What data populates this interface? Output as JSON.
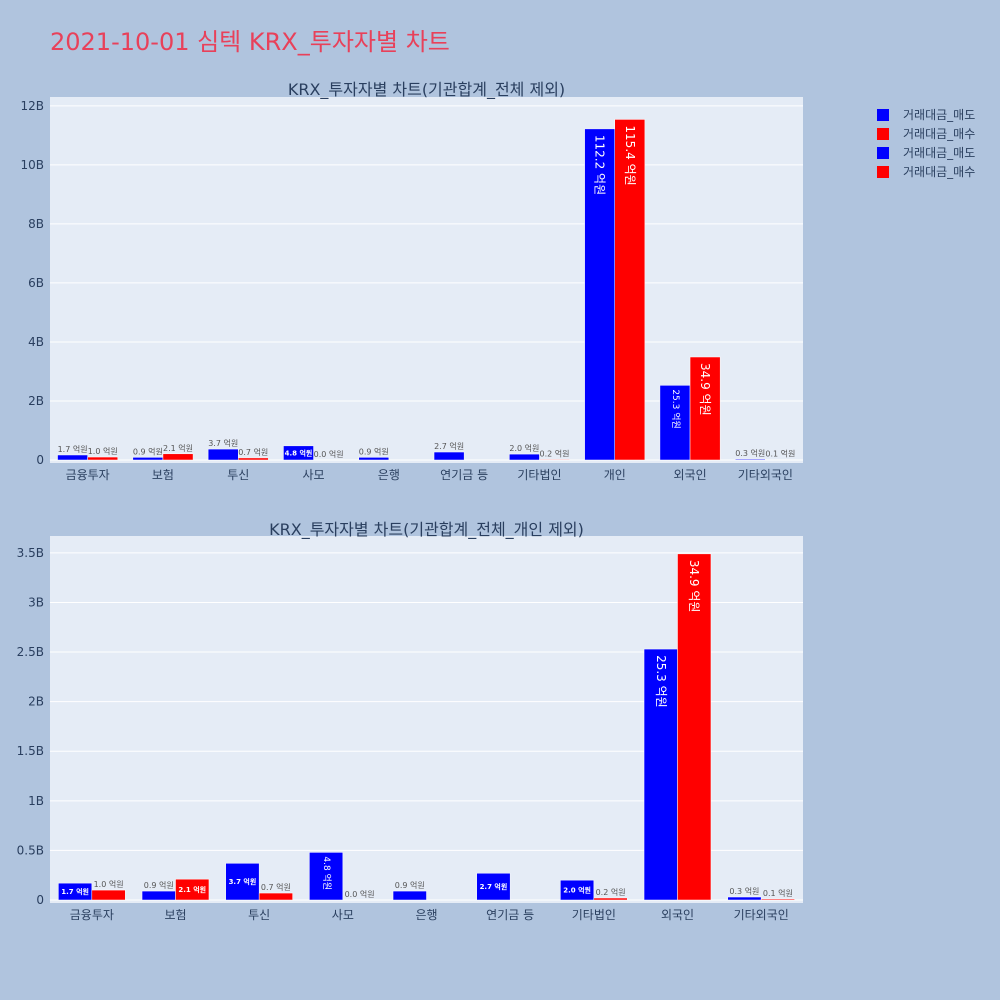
{
  "page": {
    "title": "2021-10-01 심텍 KRX_투자자별 차트"
  },
  "colors": {
    "sell": "#0000ff",
    "buy": "#ff0000",
    "plot_bg": "#e5ecf6",
    "page_bg": "#b0c4de",
    "title": "#e8415a"
  },
  "legend": {
    "placement": "top-right",
    "items": [
      {
        "name": "거래대금_매도",
        "color": "#0000ff"
      },
      {
        "name": "거래대금_매수",
        "color": "#ff0000"
      },
      {
        "name": "거래대금_매도",
        "color": "#0000ff"
      },
      {
        "name": "거래대금_매수",
        "color": "#ff0000"
      }
    ]
  },
  "chart_data": [
    {
      "type": "bar",
      "title": "KRX_투자자별 차트(기관합계_전체 제외)",
      "categories": [
        "금융투자",
        "보험",
        "투신",
        "사모",
        "은행",
        "연기금 등",
        "기타법인",
        "개인",
        "외국인",
        "기타외국인"
      ],
      "series": [
        {
          "name": "거래대금_매도",
          "color": "#0000ff",
          "values": [
            0.17,
            0.09,
            0.37,
            0.48,
            0.09,
            0.27,
            0.2,
            11.22,
            2.53,
            0.03
          ],
          "labels": [
            "1.7 억원",
            "0.9 억원",
            "3.7 억원",
            "4.8 억원",
            "0.9 억원",
            "2.7 억원",
            "2.0 억원",
            "112.2 억원",
            "25.3 억원",
            "0.3 억원"
          ]
        },
        {
          "name": "거래대금_매수",
          "color": "#ff0000",
          "values": [
            0.1,
            0.21,
            0.07,
            0.0,
            0.0,
            0.0,
            0.02,
            11.54,
            3.49,
            0.01
          ],
          "labels": [
            "1.0 억원",
            "2.1 억원",
            "0.7 억원",
            "0.0 억원",
            "",
            "",
            "0.2 억원",
            "115.4 억원",
            "34.9 억원",
            "0.1 억원"
          ]
        }
      ],
      "ylim": [
        0,
        12.3
      ],
      "yticks": [
        0,
        2,
        4,
        6,
        8,
        10,
        12
      ],
      "ytick_labels": [
        "0",
        "2B",
        "4B",
        "6B",
        "8B",
        "10B",
        "12B"
      ],
      "grid": true
    },
    {
      "type": "bar",
      "title": "KRX_투자자별 차트(기관합계_전체_개인 제외)",
      "categories": [
        "금융투자",
        "보험",
        "투신",
        "사모",
        "은행",
        "연기금 등",
        "기타법인",
        "외국인",
        "기타외국인"
      ],
      "series": [
        {
          "name": "거래대금_매도",
          "color": "#0000ff",
          "values": [
            0.17,
            0.09,
            0.37,
            0.48,
            0.09,
            0.27,
            0.2,
            2.53,
            0.03
          ],
          "labels": [
            "1.7 억원",
            "0.9 억원",
            "3.7 억원",
            "4.8 억원",
            "0.9 억원",
            "2.7 억원",
            "2.0 억원",
            "25.3 억원",
            "0.3 억원"
          ]
        },
        {
          "name": "거래대금_매수",
          "color": "#ff0000",
          "values": [
            0.1,
            0.21,
            0.07,
            0.0,
            0.0,
            0.0,
            0.02,
            3.49,
            0.01
          ],
          "labels": [
            "1.0 억원",
            "2.1 억원",
            "0.7 억원",
            "0.0 억원",
            "",
            "",
            "0.2 억원",
            "34.9 억원",
            "0.1 억원"
          ]
        }
      ],
      "ylim": [
        0,
        3.67
      ],
      "yticks": [
        0,
        0.5,
        1,
        1.5,
        2,
        2.5,
        3,
        3.5
      ],
      "ytick_labels": [
        "0",
        "0.5B",
        "1B",
        "1.5B",
        "2B",
        "2.5B",
        "3B",
        "3.5B"
      ],
      "grid": true
    }
  ]
}
